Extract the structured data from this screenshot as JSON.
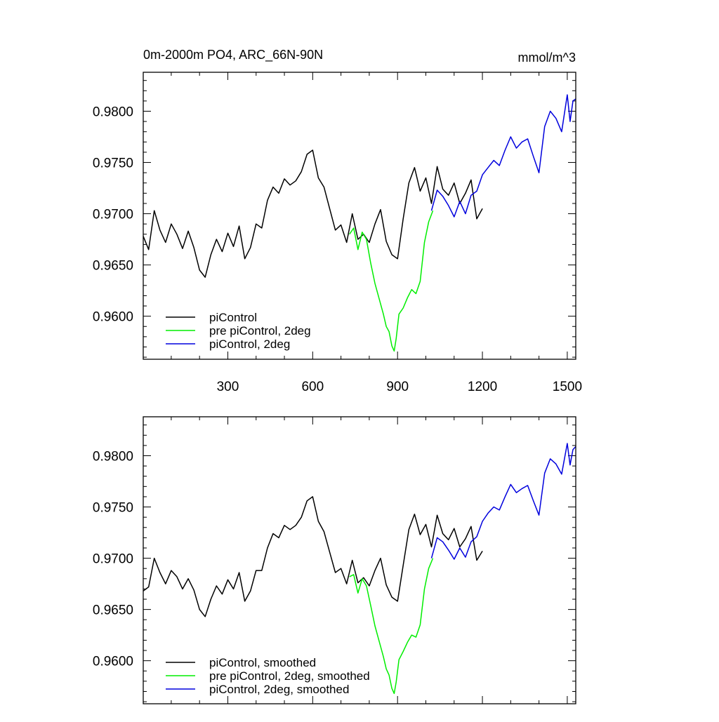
{
  "page": {
    "title_left": "0m-2000m PO4, ARC_66N-90N",
    "title_right": "mmol/m^3"
  },
  "colors": {
    "series1": "#000000",
    "series2": "#00ee00",
    "series3": "#0000dd"
  },
  "chart_data": [
    {
      "type": "line",
      "title": "0m-2000m PO4, ARC_66N-90N",
      "units": "mmol/m^3",
      "xlim": [
        1,
        1530
      ],
      "ylim": [
        0.9558,
        0.9838
      ],
      "x_ticks": [
        300,
        600,
        900,
        1200,
        1500
      ],
      "x_tick_labels": [
        "300",
        "600",
        "900",
        "1200",
        "1500"
      ],
      "y_ticks": [
        0.96,
        0.965,
        0.97,
        0.975,
        0.98
      ],
      "y_tick_labels": [
        "0.9600",
        "0.9650",
        "0.9700",
        "0.9750",
        "0.9800"
      ],
      "grid": false,
      "legend_position": "bottom-left",
      "series": [
        {
          "name": "piControl",
          "color": "#000000",
          "x": [
            1,
            20,
            40,
            60,
            80,
            100,
            120,
            140,
            160,
            180,
            200,
            220,
            240,
            260,
            280,
            300,
            320,
            340,
            360,
            380,
            400,
            420,
            440,
            460,
            480,
            500,
            520,
            540,
            560,
            580,
            600,
            620,
            640,
            660,
            680,
            700,
            720,
            740,
            760,
            780,
            800,
            820,
            840,
            860,
            880,
            900,
            920,
            940,
            960,
            980,
            1000,
            1020,
            1040,
            1060,
            1080,
            1100,
            1120,
            1140,
            1160,
            1180,
            1200
          ],
          "values": [
            0.9678,
            0.9665,
            0.9703,
            0.9684,
            0.9672,
            0.969,
            0.968,
            0.9666,
            0.9683,
            0.9667,
            0.9645,
            0.9638,
            0.966,
            0.9675,
            0.9663,
            0.9681,
            0.9668,
            0.9688,
            0.9656,
            0.9667,
            0.969,
            0.9686,
            0.9713,
            0.9726,
            0.972,
            0.9734,
            0.9728,
            0.9732,
            0.9741,
            0.9758,
            0.9762,
            0.9735,
            0.9726,
            0.9705,
            0.9684,
            0.9689,
            0.9672,
            0.97,
            0.9675,
            0.968,
            0.9672,
            0.969,
            0.9704,
            0.9673,
            0.966,
            0.9656,
            0.9695,
            0.973,
            0.9745,
            0.9722,
            0.9735,
            0.971,
            0.9746,
            0.9724,
            0.9718,
            0.973,
            0.971,
            0.972,
            0.9733,
            0.9695,
            0.9705
          ]
        },
        {
          "name": "pre piControl, 2deg",
          "color": "#00ee00",
          "x": [
            730,
            745,
            760,
            775,
            790,
            805,
            820,
            835,
            850,
            860,
            870,
            880,
            888,
            895,
            905,
            920,
            935,
            950,
            965,
            980,
            995,
            1010,
            1025
          ],
          "values": [
            0.968,
            0.9686,
            0.9665,
            0.9682,
            0.9675,
            0.9652,
            0.9632,
            0.9617,
            0.9602,
            0.959,
            0.9585,
            0.9571,
            0.9566,
            0.9578,
            0.9602,
            0.9608,
            0.9618,
            0.9626,
            0.9622,
            0.9634,
            0.9672,
            0.9692,
            0.9703
          ]
        },
        {
          "name": "piControl, 2deg",
          "color": "#0000dd",
          "x": [
            1020,
            1040,
            1060,
            1080,
            1100,
            1120,
            1140,
            1160,
            1180,
            1200,
            1220,
            1240,
            1260,
            1280,
            1300,
            1320,
            1340,
            1360,
            1380,
            1400,
            1420,
            1440,
            1460,
            1480,
            1500,
            1510,
            1520,
            1530
          ],
          "values": [
            0.9703,
            0.9723,
            0.9717,
            0.9708,
            0.9697,
            0.9712,
            0.97,
            0.9718,
            0.9722,
            0.9738,
            0.9745,
            0.9752,
            0.9747,
            0.9762,
            0.9775,
            0.9764,
            0.977,
            0.9773,
            0.9756,
            0.974,
            0.9785,
            0.98,
            0.9793,
            0.978,
            0.9816,
            0.979,
            0.981,
            0.9812
          ]
        }
      ]
    },
    {
      "type": "line",
      "xlim": [
        1,
        1530
      ],
      "ylim": [
        0.9558,
        0.9838
      ],
      "x_ticks": [
        300,
        600,
        900,
        1200,
        1500
      ],
      "y_ticks": [
        0.96,
        0.965,
        0.97,
        0.975,
        0.98
      ],
      "y_tick_labels": [
        "0.9600",
        "0.9650",
        "0.9700",
        "0.9750",
        "0.9800"
      ],
      "grid": false,
      "legend_position": "bottom-left",
      "series": [
        {
          "name": "piControl, smoothed",
          "color": "#000000",
          "x": [
            1,
            20,
            40,
            60,
            80,
            100,
            120,
            140,
            160,
            180,
            200,
            220,
            240,
            260,
            280,
            300,
            320,
            340,
            360,
            380,
            400,
            420,
            440,
            460,
            480,
            500,
            520,
            540,
            560,
            580,
            600,
            620,
            640,
            660,
            680,
            700,
            720,
            740,
            760,
            780,
            800,
            820,
            840,
            860,
            880,
            900,
            920,
            940,
            960,
            980,
            1000,
            1020,
            1040,
            1060,
            1080,
            1100,
            1120,
            1140,
            1160,
            1180,
            1200
          ],
          "values": [
            0.9668,
            0.9672,
            0.97,
            0.9686,
            0.9675,
            0.9688,
            0.9682,
            0.967,
            0.968,
            0.9669,
            0.965,
            0.9643,
            0.966,
            0.9673,
            0.9665,
            0.9679,
            0.967,
            0.9686,
            0.9658,
            0.9668,
            0.9688,
            0.9688,
            0.971,
            0.9724,
            0.972,
            0.9732,
            0.9728,
            0.9732,
            0.974,
            0.9756,
            0.976,
            0.9736,
            0.9726,
            0.9706,
            0.9686,
            0.969,
            0.9675,
            0.9698,
            0.9676,
            0.9681,
            0.9673,
            0.9688,
            0.97,
            0.9674,
            0.9662,
            0.9658,
            0.9693,
            0.9728,
            0.9743,
            0.9723,
            0.9733,
            0.9711,
            0.9742,
            0.9724,
            0.9718,
            0.9729,
            0.9711,
            0.9719,
            0.9731,
            0.9698,
            0.9707
          ]
        },
        {
          "name": "pre piControl, 2deg, smoothed",
          "color": "#00ee00",
          "x": [
            730,
            745,
            760,
            775,
            790,
            805,
            820,
            835,
            850,
            860,
            870,
            880,
            888,
            895,
            905,
            920,
            935,
            950,
            965,
            980,
            995,
            1010,
            1025
          ],
          "values": [
            0.9682,
            0.9684,
            0.9666,
            0.968,
            0.9673,
            0.9654,
            0.9634,
            0.9619,
            0.9604,
            0.9592,
            0.9586,
            0.9573,
            0.9568,
            0.9579,
            0.9601,
            0.9609,
            0.9618,
            0.9625,
            0.9623,
            0.9635,
            0.967,
            0.969,
            0.97
          ]
        },
        {
          "name": "piControl, 2deg, smoothed",
          "color": "#0000dd",
          "x": [
            1020,
            1040,
            1060,
            1080,
            1100,
            1120,
            1140,
            1160,
            1180,
            1200,
            1220,
            1240,
            1260,
            1280,
            1300,
            1320,
            1340,
            1360,
            1380,
            1400,
            1420,
            1440,
            1460,
            1480,
            1500,
            1510,
            1520,
            1530
          ],
          "values": [
            0.97,
            0.972,
            0.9716,
            0.9708,
            0.9699,
            0.971,
            0.9701,
            0.9716,
            0.9721,
            0.9736,
            0.9744,
            0.975,
            0.9747,
            0.976,
            0.9772,
            0.9764,
            0.9768,
            0.9771,
            0.9756,
            0.9742,
            0.9783,
            0.9797,
            0.9792,
            0.9782,
            0.9812,
            0.9791,
            0.9806,
            0.9809
          ]
        }
      ]
    }
  ]
}
